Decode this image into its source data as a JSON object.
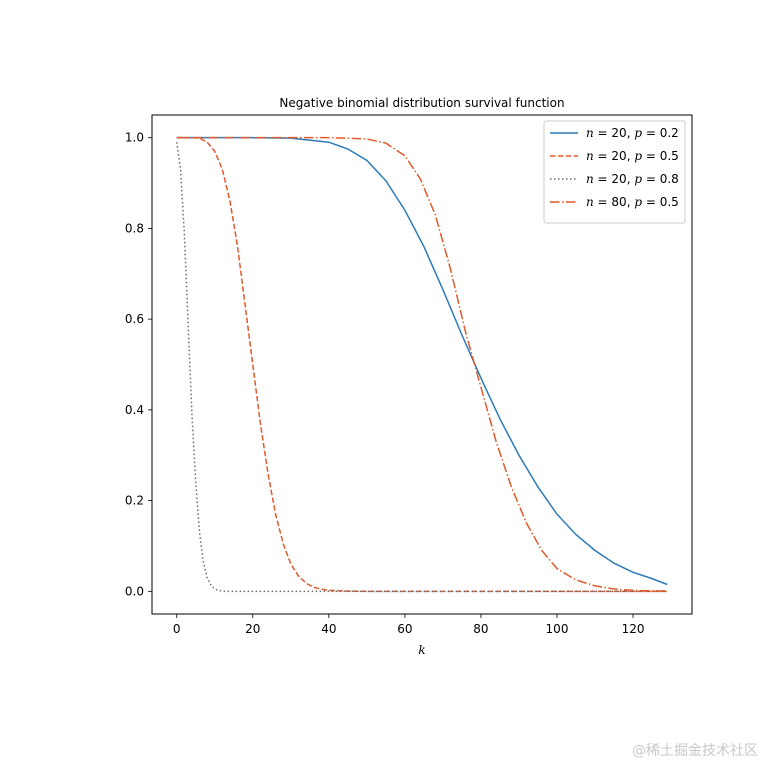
{
  "chart_data": {
    "type": "line",
    "title": "Negative binomial distribution survival function",
    "xlabel": "k",
    "ylabel": "",
    "xlim": [
      -6.5,
      135.5
    ],
    "ylim": [
      -0.05,
      1.05
    ],
    "xticks": [
      0,
      20,
      40,
      60,
      80,
      100,
      120
    ],
    "yticks": [
      0.0,
      0.2,
      0.4,
      0.6,
      0.8,
      1.0
    ],
    "xtick_labels": [
      "0",
      "20",
      "40",
      "60",
      "80",
      "100",
      "120"
    ],
    "ytick_labels": [
      "0.0",
      "0.2",
      "0.4",
      "0.6",
      "0.8",
      "1.0"
    ],
    "grid": false,
    "legend_position": "top-right",
    "series": [
      {
        "name_parts": {
          "n": "20",
          "p": "0.2"
        },
        "style": "solid",
        "color": "#2b7bba",
        "x": [
          0,
          10,
          20,
          30,
          40,
          45,
          50,
          55,
          60,
          65,
          70,
          75,
          80,
          85,
          90,
          95,
          100,
          105,
          110,
          115,
          120,
          125,
          129
        ],
        "y": [
          1.0,
          1.0,
          1.0,
          0.999,
          0.99,
          0.975,
          0.95,
          0.905,
          0.84,
          0.76,
          0.665,
          0.565,
          0.47,
          0.38,
          0.3,
          0.23,
          0.17,
          0.125,
          0.09,
          0.062,
          0.042,
          0.028,
          0.015
        ]
      },
      {
        "name_parts": {
          "n": "20",
          "p": "0.5"
        },
        "style": "dashed",
        "color": "#e05a2b",
        "x": [
          0,
          4,
          6,
          8,
          10,
          12,
          14,
          16,
          18,
          20,
          22,
          24,
          26,
          28,
          30,
          32,
          34,
          36,
          38,
          40,
          45,
          50,
          60,
          80,
          100,
          129
        ],
        "y": [
          1.0,
          1.0,
          0.999,
          0.99,
          0.97,
          0.93,
          0.86,
          0.76,
          0.63,
          0.5,
          0.37,
          0.26,
          0.17,
          0.105,
          0.06,
          0.034,
          0.018,
          0.009,
          0.005,
          0.002,
          0.0005,
          0.0,
          0.0,
          0.0,
          0.0,
          0.0
        ]
      },
      {
        "name_parts": {
          "n": "20",
          "p": "0.8"
        },
        "style": "dotted",
        "color": "#6b6b6b",
        "x": [
          0,
          1,
          2,
          3,
          4,
          5,
          6,
          7,
          8,
          9,
          10,
          11,
          12,
          13,
          14,
          16,
          20,
          30,
          60,
          100,
          129
        ],
        "y": [
          0.99,
          0.93,
          0.79,
          0.59,
          0.39,
          0.24,
          0.13,
          0.065,
          0.03,
          0.013,
          0.005,
          0.002,
          0.001,
          0.0,
          0.0,
          0.0,
          0.0,
          0.0,
          0.0,
          0.0,
          0.0
        ]
      },
      {
        "name_parts": {
          "n": "80",
          "p": "0.5"
        },
        "style": "dashdot",
        "color": "#e05a2b",
        "x": [
          0,
          20,
          30,
          40,
          45,
          50,
          55,
          60,
          64,
          68,
          72,
          76,
          80,
          84,
          88,
          92,
          96,
          100,
          105,
          110,
          115,
          120,
          125,
          129
        ],
        "y": [
          1.0,
          1.0,
          1.0,
          1.0,
          0.999,
          0.997,
          0.988,
          0.96,
          0.91,
          0.83,
          0.71,
          0.57,
          0.45,
          0.33,
          0.23,
          0.15,
          0.09,
          0.05,
          0.025,
          0.012,
          0.005,
          0.002,
          0.001,
          0.0005
        ]
      }
    ]
  },
  "watermark": "@稀土掘金技术社区"
}
